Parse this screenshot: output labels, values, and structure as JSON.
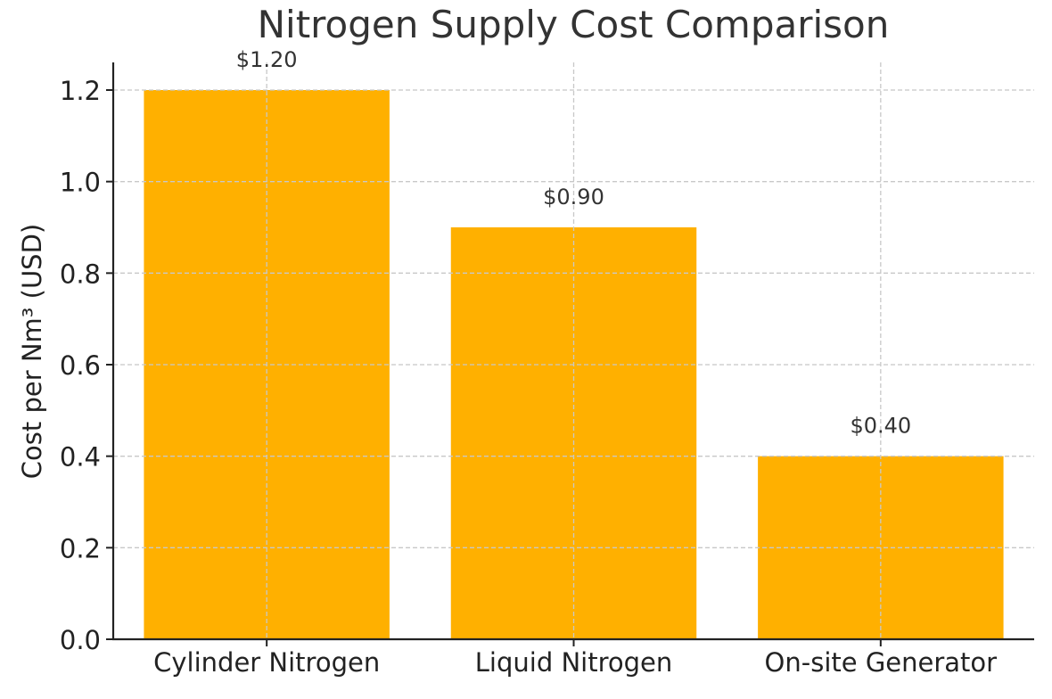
{
  "chart_data": {
    "type": "bar",
    "title": "Nitrogen Supply Cost Comparison",
    "xlabel": "",
    "ylabel": "Cost per Nm³ (USD)",
    "categories": [
      "Cylinder Nitrogen",
      "Liquid Nitrogen",
      "On-site Generator"
    ],
    "values": [
      1.2,
      0.9,
      0.4
    ],
    "data_labels": [
      "$1.20",
      "$0.90",
      "$0.40"
    ],
    "ylim": [
      0,
      1.26
    ],
    "yticks": [
      0.0,
      0.2,
      0.4,
      0.6,
      0.8,
      1.0,
      1.2
    ],
    "ytick_labels": [
      "0.0",
      "0.2",
      "0.4",
      "0.6",
      "0.8",
      "1.0",
      "1.2"
    ],
    "grid": true,
    "bar_color": "#FFB000"
  }
}
